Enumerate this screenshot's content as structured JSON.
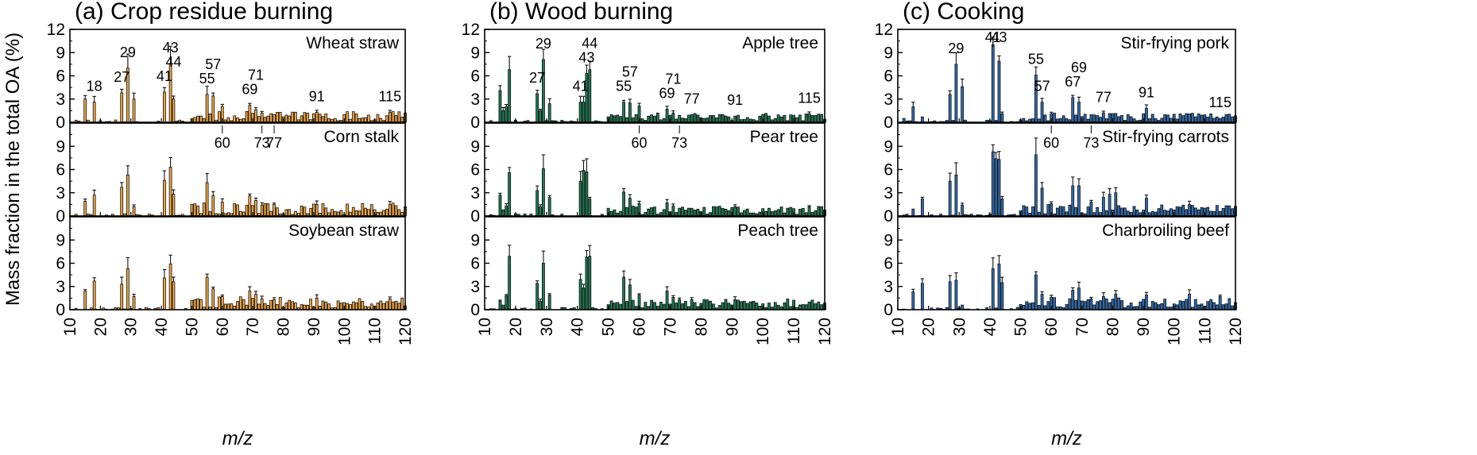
{
  "figure": {
    "ylabel": "Mass fraction in the total OA (%)"
  },
  "chart_data": [
    {
      "type": "bar",
      "title": "(a) Crop residue burning",
      "xlabel": "m/z",
      "ylabel": "Mass fraction in the total OA (%)",
      "xlim": [
        10,
        120
      ],
      "x_ticks": [
        10,
        20,
        30,
        40,
        50,
        60,
        70,
        80,
        90,
        100,
        110,
        120
      ],
      "color": "#f2a541",
      "subplots": [
        {
          "label": "Wheat straw",
          "ylim": [
            0,
            12
          ],
          "y_ticks": [
            0,
            3,
            6,
            9,
            12
          ],
          "peaks": [
            [
              15,
              3.0
            ],
            [
              18,
              2.6
            ],
            [
              27,
              3.8
            ],
            [
              29,
              7.0
            ],
            [
              31,
              3.0
            ],
            [
              41,
              3.9
            ],
            [
              43,
              7.6
            ],
            [
              44,
              3.0
            ],
            [
              55,
              3.6
            ],
            [
              57,
              3.4
            ],
            [
              60,
              2.0
            ],
            [
              69,
              2.2
            ],
            [
              71,
              1.6
            ],
            [
              73,
              1.2
            ],
            [
              77,
              1.0
            ],
            [
              91,
              1.3
            ],
            [
              115,
              1.3
            ]
          ],
          "baseline_amp": 1.2,
          "annotations": [
            {
              "text": "18",
              "mz": 18,
              "pos": "above"
            },
            {
              "text": "27",
              "mz": 27,
              "pos": "above"
            },
            {
              "text": "29",
              "mz": 29,
              "pos": "above"
            },
            {
              "text": "41",
              "mz": 41,
              "pos": "above"
            },
            {
              "text": "43",
              "mz": 43,
              "pos": "above"
            },
            {
              "text": "44",
              "mz": 44,
              "pos": "above"
            },
            {
              "text": "55",
              "mz": 55,
              "pos": "above"
            },
            {
              "text": "57",
              "mz": 57,
              "pos": "above"
            },
            {
              "text": "69",
              "mz": 69,
              "pos": "above"
            },
            {
              "text": "71",
              "mz": 71,
              "pos": "above"
            },
            {
              "text": "91",
              "mz": 91,
              "pos": "above"
            },
            {
              "text": "115",
              "mz": 115,
              "pos": "above"
            },
            {
              "text": "60",
              "mz": 60,
              "pos": "below"
            },
            {
              "text": "73",
              "mz": 73,
              "pos": "below"
            },
            {
              "text": "77",
              "mz": 77,
              "pos": "below"
            }
          ]
        },
        {
          "label": "Corn stalk",
          "ylim": [
            0,
            12
          ],
          "y_ticks": [
            0,
            3,
            6,
            9
          ],
          "peaks": [
            [
              15,
              1.9
            ],
            [
              18,
              2.7
            ],
            [
              27,
              3.7
            ],
            [
              29,
              5.3
            ],
            [
              31,
              1.2
            ],
            [
              41,
              4.6
            ],
            [
              43,
              6.3
            ],
            [
              44,
              2.8
            ],
            [
              55,
              4.3
            ],
            [
              57,
              2.6
            ],
            [
              60,
              1.8
            ],
            [
              69,
              2.6
            ],
            [
              71,
              2.0
            ],
            [
              73,
              1.4
            ],
            [
              77,
              1.5
            ],
            [
              91,
              1.5
            ],
            [
              115,
              1.5
            ]
          ],
          "baseline_amp": 1.5,
          "annotations": []
        },
        {
          "label": "Soybean straw",
          "ylim": [
            0,
            12
          ],
          "y_ticks": [
            0,
            3,
            6,
            9
          ],
          "peaks": [
            [
              15,
              2.4
            ],
            [
              18,
              3.7
            ],
            [
              27,
              3.3
            ],
            [
              29,
              5.3
            ],
            [
              31,
              1.7
            ],
            [
              41,
              4.1
            ],
            [
              43,
              5.9
            ],
            [
              44,
              3.6
            ],
            [
              55,
              4.2
            ],
            [
              57,
              2.7
            ],
            [
              60,
              1.7
            ],
            [
              69,
              2.4
            ],
            [
              71,
              2.0
            ],
            [
              73,
              1.4
            ],
            [
              77,
              1.3
            ],
            [
              91,
              1.5
            ],
            [
              115,
              1.4
            ]
          ],
          "baseline_amp": 1.5,
          "annotations": []
        }
      ]
    },
    {
      "type": "bar",
      "title": "(b) Wood burning",
      "xlabel": "m/z",
      "ylabel": "Mass fraction in the total OA (%)",
      "xlim": [
        10,
        120
      ],
      "x_ticks": [
        10,
        20,
        30,
        40,
        50,
        60,
        70,
        80,
        90,
        100,
        110,
        120
      ],
      "color": "#1f7a54",
      "subplots": [
        {
          "label": "Apple tree",
          "ylim": [
            0,
            12
          ],
          "y_ticks": [
            0,
            3,
            6,
            9,
            12
          ],
          "peaks": [
            [
              15,
              4.1
            ],
            [
              16,
              1.5
            ],
            [
              17,
              2.0
            ],
            [
              18,
              6.8
            ],
            [
              27,
              3.7
            ],
            [
              28,
              1.5
            ],
            [
              29,
              8.1
            ],
            [
              31,
              2.4
            ],
            [
              41,
              2.6
            ],
            [
              42,
              2.6
            ],
            [
              43,
              6.3
            ],
            [
              44,
              6.8
            ],
            [
              55,
              2.6
            ],
            [
              57,
              2.5
            ],
            [
              60,
              2.1
            ],
            [
              69,
              1.7
            ],
            [
              71,
              1.2
            ],
            [
              73,
              0.9
            ],
            [
              77,
              1.0
            ],
            [
              91,
              0.8
            ],
            [
              115,
              1.1
            ]
          ],
          "baseline_amp": 1.0,
          "annotations": [
            {
              "text": "27",
              "mz": 27,
              "pos": "above"
            },
            {
              "text": "29",
              "mz": 29,
              "pos": "above"
            },
            {
              "text": "41",
              "mz": 41,
              "pos": "above"
            },
            {
              "text": "43",
              "mz": 43,
              "pos": "above"
            },
            {
              "text": "44",
              "mz": 44,
              "pos": "above"
            },
            {
              "text": "55",
              "mz": 55,
              "pos": "above"
            },
            {
              "text": "57",
              "mz": 57,
              "pos": "above"
            },
            {
              "text": "69",
              "mz": 69,
              "pos": "above"
            },
            {
              "text": "71",
              "mz": 71,
              "pos": "above"
            },
            {
              "text": "77",
              "mz": 77,
              "pos": "above"
            },
            {
              "text": "91",
              "mz": 91,
              "pos": "above"
            },
            {
              "text": "115",
              "mz": 115,
              "pos": "above"
            },
            {
              "text": "60",
              "mz": 60,
              "pos": "below"
            },
            {
              "text": "73",
              "mz": 73,
              "pos": "below"
            }
          ]
        },
        {
          "label": "Pear tree",
          "ylim": [
            0,
            12
          ],
          "y_ticks": [
            0,
            3,
            6,
            9
          ],
          "peaks": [
            [
              15,
              2.7
            ],
            [
              16,
              0.8
            ],
            [
              17,
              1.3
            ],
            [
              18,
              5.6
            ],
            [
              27,
              3.3
            ],
            [
              28,
              1.2
            ],
            [
              29,
              6.1
            ],
            [
              31,
              2.4
            ],
            [
              41,
              4.5
            ],
            [
              42,
              5.9
            ],
            [
              43,
              5.7
            ],
            [
              44,
              2.2
            ],
            [
              55,
              3.1
            ],
            [
              57,
              2.3
            ],
            [
              60,
              1.6
            ],
            [
              69,
              1.7
            ],
            [
              71,
              1.3
            ],
            [
              73,
              1.0
            ],
            [
              77,
              1.0
            ],
            [
              91,
              1.2
            ],
            [
              115,
              1.2
            ]
          ],
          "baseline_amp": 1.1,
          "annotations": []
        },
        {
          "label": "Peach tree",
          "ylim": [
            0,
            12
          ],
          "y_ticks": [
            0,
            3,
            6,
            9
          ],
          "peaks": [
            [
              15,
              1.1
            ],
            [
              16,
              0.6
            ],
            [
              17,
              1.8
            ],
            [
              18,
              6.9
            ],
            [
              27,
              3.4
            ],
            [
              28,
              1.1
            ],
            [
              29,
              6.0
            ],
            [
              31,
              1.9
            ],
            [
              41,
              3.9
            ],
            [
              42,
              2.8
            ],
            [
              43,
              6.8
            ],
            [
              44,
              6.9
            ],
            [
              55,
              4.2
            ],
            [
              57,
              3.2
            ],
            [
              60,
              1.9
            ],
            [
              69,
              2.4
            ],
            [
              71,
              1.6
            ],
            [
              73,
              1.3
            ],
            [
              77,
              1.3
            ],
            [
              91,
              1.3
            ],
            [
              115,
              1.0
            ]
          ],
          "baseline_amp": 1.2,
          "annotations": []
        }
      ]
    },
    {
      "type": "bar",
      "title": "(c) Cooking",
      "xlabel": "m/z",
      "ylabel": "Mass fraction in the total OA (%)",
      "xlim": [
        10,
        120
      ],
      "x_ticks": [
        10,
        20,
        30,
        40,
        50,
        60,
        70,
        80,
        90,
        100,
        110,
        120
      ],
      "color": "#2e6bb0",
      "subplots": [
        {
          "label": "Stir-frying pork",
          "ylim": [
            0,
            12
          ],
          "y_ticks": [
            0,
            3,
            6,
            9,
            12
          ],
          "peaks": [
            [
              12,
              0.5
            ],
            [
              15,
              2.0
            ],
            [
              18,
              0.7
            ],
            [
              27,
              3.6
            ],
            [
              29,
              7.5
            ],
            [
              31,
              4.6
            ],
            [
              41,
              10.0
            ],
            [
              43,
              7.9
            ],
            [
              44,
              1.1
            ],
            [
              55,
              6.1
            ],
            [
              57,
              2.6
            ],
            [
              60,
              1.1
            ],
            [
              67,
              3.2
            ],
            [
              69,
              2.6
            ],
            [
              73,
              1.0
            ],
            [
              77,
              1.2
            ],
            [
              91,
              1.8
            ],
            [
              115,
              0.5
            ]
          ],
          "baseline_amp": 1.0,
          "annotations": [
            {
              "text": "29",
              "mz": 29,
              "pos": "above"
            },
            {
              "text": "41",
              "mz": 41,
              "pos": "above"
            },
            {
              "text": "43",
              "mz": 43,
              "pos": "above"
            },
            {
              "text": "55",
              "mz": 55,
              "pos": "above"
            },
            {
              "text": "57",
              "mz": 57,
              "pos": "above"
            },
            {
              "text": "67",
              "mz": 67,
              "pos": "above"
            },
            {
              "text": "69",
              "mz": 69,
              "pos": "above"
            },
            {
              "text": "77",
              "mz": 77,
              "pos": "above"
            },
            {
              "text": "91",
              "mz": 91,
              "pos": "above"
            },
            {
              "text": "115",
              "mz": 115,
              "pos": "above"
            },
            {
              "text": "60",
              "mz": 60,
              "pos": "below"
            },
            {
              "text": "73",
              "mz": 73,
              "pos": "below"
            }
          ]
        },
        {
          "label": "Stir-frying carrots",
          "ylim": [
            0,
            12
          ],
          "y_ticks": [
            0,
            3,
            6,
            9
          ],
          "peaks": [
            [
              15,
              0.9
            ],
            [
              18,
              2.2
            ],
            [
              27,
              4.5
            ],
            [
              29,
              5.3
            ],
            [
              31,
              1.4
            ],
            [
              41,
              8.3
            ],
            [
              42,
              7.4
            ],
            [
              43,
              7.3
            ],
            [
              44,
              2.2
            ],
            [
              55,
              7.9
            ],
            [
              57,
              3.6
            ],
            [
              60,
              1.6
            ],
            [
              67,
              3.9
            ],
            [
              69,
              3.9
            ],
            [
              73,
              1.8
            ],
            [
              77,
              2.4
            ],
            [
              79,
              2.8
            ],
            [
              81,
              3.0
            ],
            [
              91,
              2.3
            ],
            [
              105,
              1.5
            ],
            [
              115,
              0.6
            ]
          ],
          "baseline_amp": 1.3,
          "annotations": []
        },
        {
          "label": "Charbroiling beef",
          "ylim": [
            0,
            12
          ],
          "y_ticks": [
            0,
            3,
            6,
            9
          ],
          "peaks": [
            [
              15,
              2.3
            ],
            [
              18,
              3.4
            ],
            [
              27,
              3.6
            ],
            [
              29,
              3.8
            ],
            [
              31,
              0.6
            ],
            [
              41,
              5.3
            ],
            [
              43,
              5.9
            ],
            [
              44,
              3.5
            ],
            [
              55,
              4.5
            ],
            [
              57,
              2.0
            ],
            [
              60,
              1.6
            ],
            [
              67,
              2.5
            ],
            [
              69,
              2.8
            ],
            [
              73,
              1.4
            ],
            [
              77,
              1.7
            ],
            [
              81,
              2.0
            ],
            [
              91,
              1.9
            ],
            [
              105,
              2.0
            ],
            [
              115,
              1.7
            ]
          ],
          "baseline_amp": 1.4,
          "annotations": []
        }
      ]
    }
  ]
}
